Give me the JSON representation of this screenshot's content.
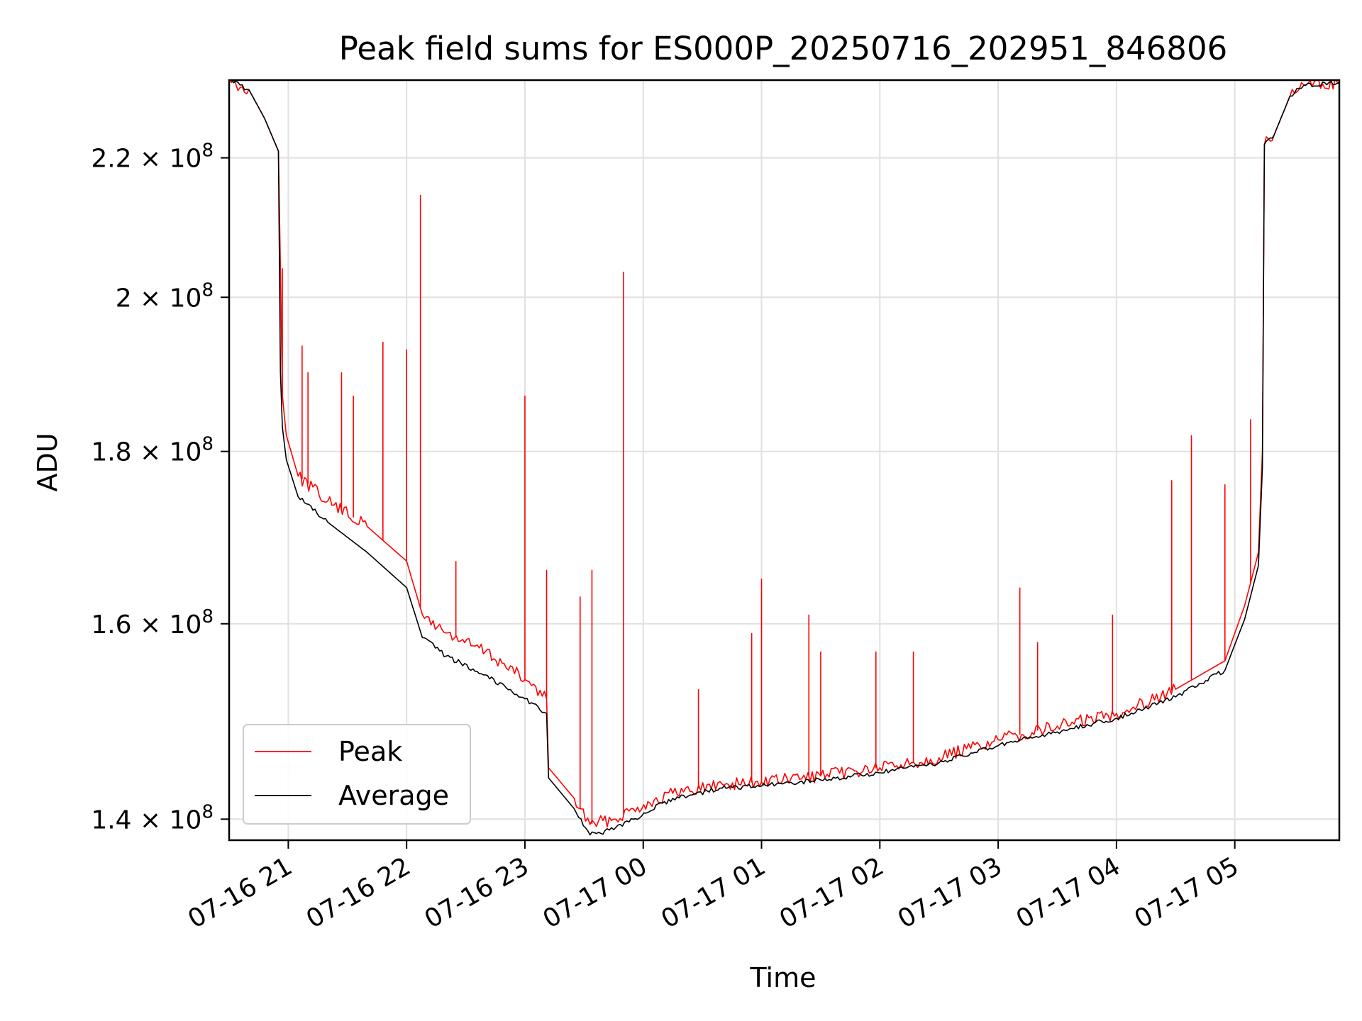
{
  "chart_data": {
    "type": "line",
    "title": "Peak field sums for ES000P_20250716_202951_846806",
    "xlabel": "Time",
    "ylabel": "ADU",
    "xlim": [
      "2025-07-16 20:30",
      "2025-07-17 05:53"
    ],
    "ylim": [
      138000000,
      232000000
    ],
    "yscale": "log",
    "grid": true,
    "legend_position": "lower-left",
    "x_ticks": [
      {
        "value": "2025-07-16 21:00",
        "label": "07-16 21"
      },
      {
        "value": "2025-07-16 22:00",
        "label": "07-16 22"
      },
      {
        "value": "2025-07-16 23:00",
        "label": "07-16 23"
      },
      {
        "value": "2025-07-17 00:00",
        "label": "07-17 00"
      },
      {
        "value": "2025-07-17 01:00",
        "label": "07-17 01"
      },
      {
        "value": "2025-07-17 02:00",
        "label": "07-17 02"
      },
      {
        "value": "2025-07-17 03:00",
        "label": "07-17 03"
      },
      {
        "value": "2025-07-17 04:00",
        "label": "07-17 04"
      },
      {
        "value": "2025-07-17 05:00",
        "label": "07-17 05"
      }
    ],
    "y_ticks": [
      {
        "value": 140000000,
        "mantissa": "1.4",
        "base": "× 10",
        "exp": "8"
      },
      {
        "value": 160000000,
        "mantissa": "1.6",
        "base": "× 10",
        "exp": "8"
      },
      {
        "value": 180000000,
        "mantissa": "1.8",
        "base": "× 10",
        "exp": "8"
      },
      {
        "value": 200000000,
        "mantissa": "2",
        "base": "× 10",
        "exp": "8"
      },
      {
        "value": 220000000,
        "mantissa": "2.2",
        "base": "× 10",
        "exp": "8"
      }
    ],
    "series": [
      {
        "name": "Peak",
        "color": "#ff0000",
        "points": [
          [
            "2025-07-16 20:30",
            232000000
          ],
          [
            "2025-07-16 20:40",
            230500000
          ],
          [
            "2025-07-16 20:48",
            226000000
          ],
          [
            "2025-07-16 20:55",
            221000000
          ],
          [
            "2025-07-16 20:56",
            204000000
          ],
          [
            "2025-07-16 20:57",
            187000000
          ],
          [
            "2025-07-16 20:59",
            182000000
          ],
          [
            "2025-07-16 21:05",
            177000000
          ],
          [
            "2025-07-16 21:20",
            174000000
          ],
          [
            "2025-07-16 21:40",
            171000000
          ],
          [
            "2025-07-16 22:00",
            167000000
          ],
          [
            "2025-07-16 22:08",
            161000000
          ],
          [
            "2025-07-16 22:20",
            159000000
          ],
          [
            "2025-07-16 22:40",
            157000000
          ],
          [
            "2025-07-16 23:00",
            154000000
          ],
          [
            "2025-07-16 23:11",
            152000000
          ],
          [
            "2025-07-16 23:12",
            145000000
          ],
          [
            "2025-07-16 23:25",
            142000000
          ],
          [
            "2025-07-16 23:33",
            139500000
          ],
          [
            "2025-07-16 23:45",
            140000000
          ],
          [
            "2025-07-16 23:55",
            141000000
          ],
          [
            "2025-07-17 00:15",
            142500000
          ],
          [
            "2025-07-17 00:40",
            143400000
          ],
          [
            "2025-07-17 01:00",
            143600000
          ],
          [
            "2025-07-17 01:30",
            144200000
          ],
          [
            "2025-07-17 02:00",
            145000000
          ],
          [
            "2025-07-17 02:30",
            146000000
          ],
          [
            "2025-07-17 03:00",
            147800000
          ],
          [
            "2025-07-17 03:30",
            149200000
          ],
          [
            "2025-07-17 04:00",
            150500000
          ],
          [
            "2025-07-17 04:30",
            153000000
          ],
          [
            "2025-07-17 04:55",
            156000000
          ],
          [
            "2025-07-17 05:05",
            162000000
          ],
          [
            "2025-07-17 05:12",
            168000000
          ],
          [
            "2025-07-17 05:14",
            180000000
          ],
          [
            "2025-07-17 05:15",
            222000000
          ],
          [
            "2025-07-17 05:20",
            223500000
          ],
          [
            "2025-07-17 05:28",
            229500000
          ],
          [
            "2025-07-17 05:35",
            231200000
          ],
          [
            "2025-07-17 05:53",
            231600000
          ]
        ],
        "spikes": [
          [
            "2025-07-16 20:57",
            204000000
          ],
          [
            "2025-07-16 21:07",
            193500000
          ],
          [
            "2025-07-16 21:10",
            190000000
          ],
          [
            "2025-07-16 21:27",
            190000000
          ],
          [
            "2025-07-16 21:33",
            187000000
          ],
          [
            "2025-07-16 21:48",
            194000000
          ],
          [
            "2025-07-16 22:00",
            193000000
          ],
          [
            "2025-07-16 22:07",
            214500000
          ],
          [
            "2025-07-16 22:25",
            167000000
          ],
          [
            "2025-07-16 23:00",
            187000000
          ],
          [
            "2025-07-16 23:11",
            166000000
          ],
          [
            "2025-07-16 23:28",
            163000000
          ],
          [
            "2025-07-16 23:34",
            166000000
          ],
          [
            "2025-07-16 23:50",
            203500000
          ],
          [
            "2025-07-17 00:28",
            153000000
          ],
          [
            "2025-07-17 00:55",
            159000000
          ],
          [
            "2025-07-17 01:00",
            165000000
          ],
          [
            "2025-07-17 01:24",
            161000000
          ],
          [
            "2025-07-17 01:30",
            157000000
          ],
          [
            "2025-07-17 01:58",
            157000000
          ],
          [
            "2025-07-17 02:17",
            157000000
          ],
          [
            "2025-07-17 03:11",
            164000000
          ],
          [
            "2025-07-17 03:20",
            158000000
          ],
          [
            "2025-07-17 03:58",
            161000000
          ],
          [
            "2025-07-17 04:28",
            176500000
          ],
          [
            "2025-07-17 04:38",
            182000000
          ],
          [
            "2025-07-17 04:55",
            176000000
          ],
          [
            "2025-07-17 05:08",
            184000000
          ]
        ]
      },
      {
        "name": "Average",
        "color": "#000000",
        "points": [
          [
            "2025-07-16 20:30",
            232000000
          ],
          [
            "2025-07-16 20:40",
            230500000
          ],
          [
            "2025-07-16 20:48",
            226000000
          ],
          [
            "2025-07-16 20:55",
            221000000
          ],
          [
            "2025-07-16 20:56",
            190000000
          ],
          [
            "2025-07-16 20:57",
            183000000
          ],
          [
            "2025-07-16 20:59",
            179000000
          ],
          [
            "2025-07-16 21:05",
            174500000
          ],
          [
            "2025-07-16 21:20",
            171500000
          ],
          [
            "2025-07-16 21:40",
            168000000
          ],
          [
            "2025-07-16 22:00",
            164000000
          ],
          [
            "2025-07-16 22:08",
            158500000
          ],
          [
            "2025-07-16 22:20",
            156500000
          ],
          [
            "2025-07-16 22:40",
            154500000
          ],
          [
            "2025-07-16 23:00",
            152000000
          ],
          [
            "2025-07-16 23:11",
            150500000
          ],
          [
            "2025-07-16 23:12",
            144000000
          ],
          [
            "2025-07-16 23:25",
            141000000
          ],
          [
            "2025-07-16 23:33",
            138500000
          ],
          [
            "2025-07-16 23:45",
            139000000
          ],
          [
            "2025-07-16 23:55",
            140000000
          ],
          [
            "2025-07-17 00:15",
            142000000
          ],
          [
            "2025-07-17 00:40",
            143000000
          ],
          [
            "2025-07-17 01:00",
            143200000
          ],
          [
            "2025-07-17 01:30",
            143800000
          ],
          [
            "2025-07-17 02:00",
            144500000
          ],
          [
            "2025-07-17 02:30",
            145500000
          ],
          [
            "2025-07-17 03:00",
            147200000
          ],
          [
            "2025-07-17 03:30",
            148600000
          ],
          [
            "2025-07-17 04:00",
            150000000
          ],
          [
            "2025-07-17 04:30",
            152200000
          ],
          [
            "2025-07-17 04:55",
            155000000
          ],
          [
            "2025-07-17 05:05",
            160500000
          ],
          [
            "2025-07-17 05:12",
            166500000
          ],
          [
            "2025-07-17 05:14",
            178000000
          ],
          [
            "2025-07-17 05:15",
            222000000
          ],
          [
            "2025-07-17 05:20",
            223500000
          ],
          [
            "2025-07-17 05:28",
            229500000
          ],
          [
            "2025-07-17 05:35",
            231200000
          ],
          [
            "2025-07-17 05:53",
            231600000
          ]
        ]
      }
    ]
  }
}
